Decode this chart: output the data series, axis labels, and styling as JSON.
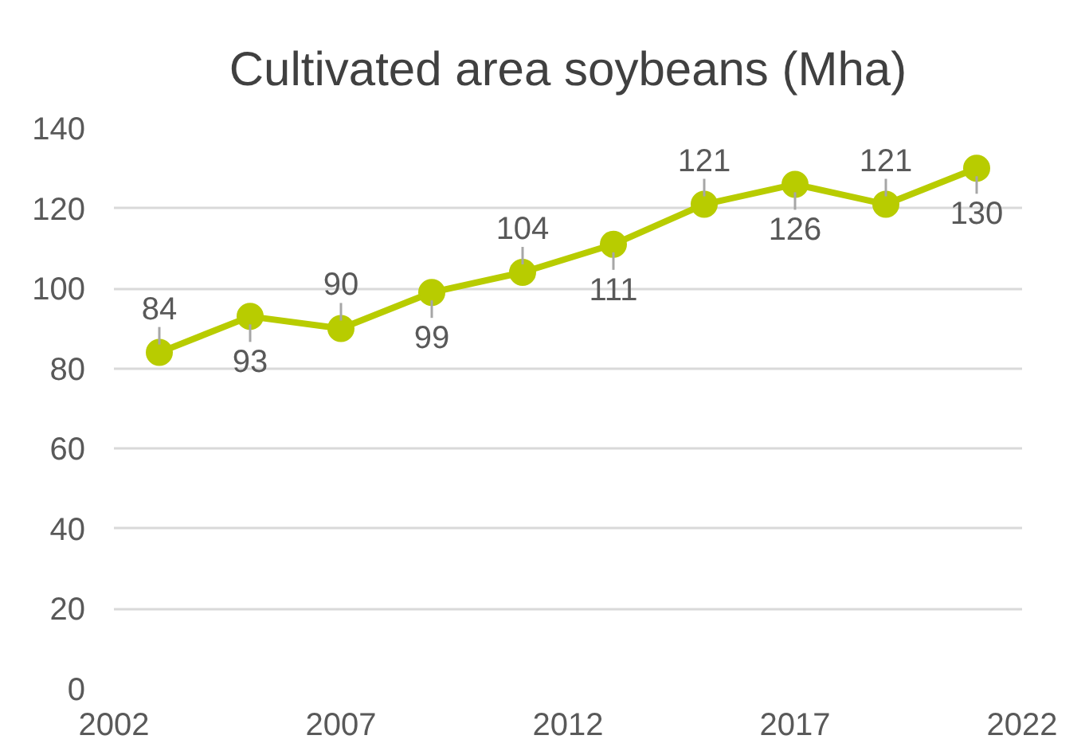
{
  "chart_data": {
    "type": "line",
    "title": "Cultivated area soybeans (Mha)",
    "x": [
      2003,
      2005,
      2007,
      2009,
      2011,
      2013,
      2015,
      2017,
      2019,
      2021
    ],
    "series": [
      {
        "color": "#b8cc00",
        "values": [
          84,
          93,
          90,
          99,
          104,
          111,
          121,
          126,
          121,
          130
        ]
      }
    ],
    "xlim": [
      2002,
      2022
    ],
    "xticks": [
      2002,
      2007,
      2012,
      2017,
      2022
    ],
    "ylim": [
      0,
      140
    ],
    "yticks": [
      0,
      20,
      40,
      60,
      80,
      100,
      120,
      140
    ],
    "grid": "y",
    "marker": "circle",
    "line_style": "solid",
    "data_labels": true
  }
}
